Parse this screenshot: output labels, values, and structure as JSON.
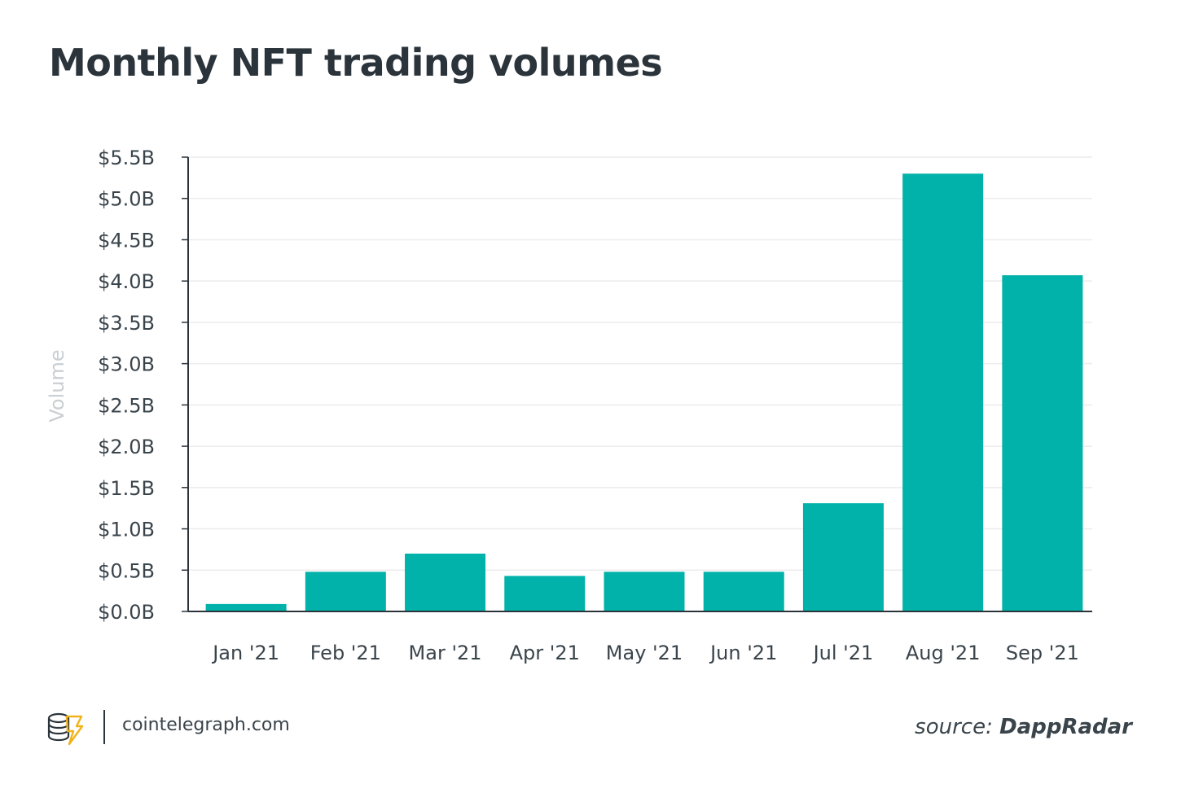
{
  "chart_data": {
    "type": "bar",
    "title": "Monthly NFT trading volumes",
    "ylabel": "Volume",
    "xlabel": "",
    "categories": [
      "Jan '21",
      "Feb '21",
      "Mar '21",
      "Apr '21",
      "May '21",
      "Jun '21",
      "Jul '21",
      "Aug '21",
      "Sep '21"
    ],
    "values": [
      0.09,
      0.48,
      0.7,
      0.43,
      0.48,
      0.48,
      1.31,
      5.3,
      4.07
    ],
    "ylim": [
      0,
      5.5
    ],
    "yticks": [
      0,
      0.5,
      1.0,
      1.5,
      2.0,
      2.5,
      3.0,
      3.5,
      4.0,
      4.5,
      5.0,
      5.5
    ],
    "ytick_labels": [
      "$0.0B",
      "$0.5B",
      "$1.0B",
      "$1.5B",
      "$2.0B",
      "$2.5B",
      "$3.0B",
      "$3.5B",
      "$4.0B",
      "$4.5B",
      "$5.0B",
      "$5.5B"
    ],
    "grid": true,
    "bar_color": "#00b2a9"
  },
  "footer": {
    "site": "cointelegraph.com",
    "source_prefix": "source:",
    "source_name": "DappRadar"
  },
  "logo": {
    "icon": "cointelegraph-logo-icon",
    "color": "#f2b31a"
  }
}
